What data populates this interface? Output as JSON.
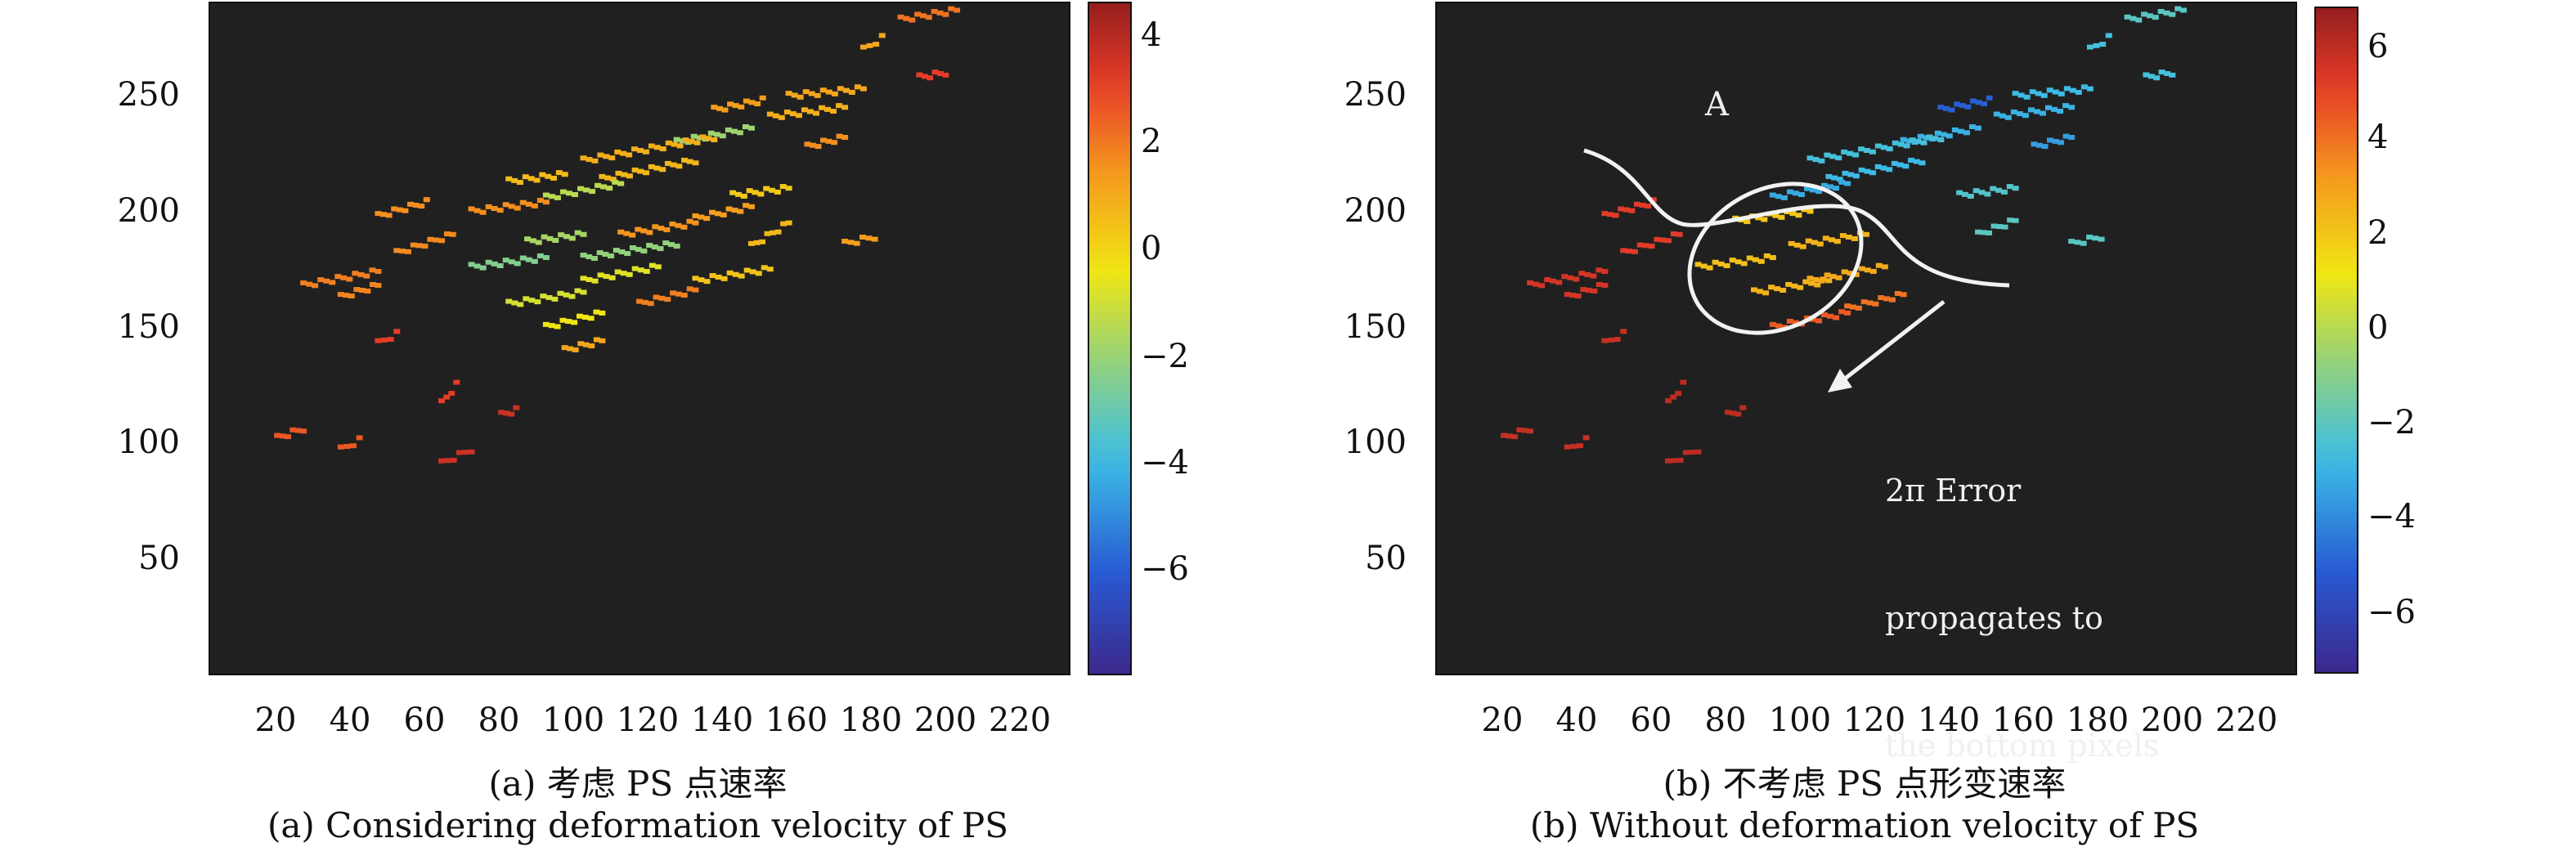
{
  "panels": [
    {
      "id": "a",
      "caption_cn": "(a) 考虑 PS 点速率",
      "caption_en": "(a) Considering deformation velocity of PS",
      "colorbar_ticks": [
        "4",
        "2",
        "0",
        "−2",
        "−4",
        "−6"
      ],
      "label_A": "",
      "annotation": []
    },
    {
      "id": "b",
      "caption_cn": "(b) 不考虑 PS 点形变速率",
      "caption_en": "(b) Without deformation velocity of PS",
      "colorbar_ticks": [
        "6",
        "4",
        "2",
        "0",
        "−2",
        "−4",
        "−6"
      ],
      "label_A": "A",
      "annotation": [
        "2π Error",
        "propagates to",
        "the bottom pixels"
      ]
    }
  ],
  "chart_data": [
    {
      "type": "scatter",
      "title": "(a) 考虑 PS 点速率",
      "subtitle": "(a) Considering deformation velocity of PS",
      "xlim": [
        0,
        230
      ],
      "ylim": [
        0,
        290
      ],
      "x_ticks": [
        20,
        40,
        60,
        80,
        100,
        120,
        140,
        160,
        180,
        200,
        220
      ],
      "y_ticks": [
        50,
        100,
        150,
        200,
        250
      ],
      "colorbar": {
        "range": [
          -8,
          4.5
        ],
        "ticks": [
          4,
          2,
          0,
          -2,
          -4,
          -6
        ]
      },
      "background": "#202020",
      "segments": [
        {
          "x": [
            185,
            200
          ],
          "y": [
            283,
            287
          ],
          "v": 2.0
        },
        {
          "x": [
            190,
            197
          ],
          "y": [
            258,
            260
          ],
          "v": 3.0
        },
        {
          "x": [
            155,
            175
          ],
          "y": [
            250,
            253
          ],
          "v": 1.0
        },
        {
          "x": [
            150,
            170
          ],
          "y": [
            241,
            245
          ],
          "v": 0.8
        },
        {
          "x": [
            135,
            148
          ],
          "y": [
            244,
            248
          ],
          "v": 1.2
        },
        {
          "x": [
            125,
            145
          ],
          "y": [
            230,
            236
          ],
          "v": -2.0
        },
        {
          "x": [
            100,
            135
          ],
          "y": [
            222,
            232
          ],
          "v": 0.8
        },
        {
          "x": [
            105,
            130
          ],
          "y": [
            214,
            222
          ],
          "v": 0.6
        },
        {
          "x": [
            90,
            110
          ],
          "y": [
            206,
            212
          ],
          "v": -1.5
        },
        {
          "x": [
            80,
            95
          ],
          "y": [
            213,
            216
          ],
          "v": 0.5
        },
        {
          "x": [
            70,
            90
          ],
          "y": [
            200,
            204
          ],
          "v": 1.5
        },
        {
          "x": [
            45,
            58
          ],
          "y": [
            198,
            204
          ],
          "v": 1.5
        },
        {
          "x": [
            50,
            65
          ],
          "y": [
            182,
            190
          ],
          "v": 1.6
        },
        {
          "x": [
            25,
            45
          ],
          "y": [
            168,
            174
          ],
          "v": 1.8
        },
        {
          "x": [
            35,
            45
          ],
          "y": [
            163,
            168
          ],
          "v": 1.7
        },
        {
          "x": [
            70,
            90
          ],
          "y": [
            176,
            180
          ],
          "v": -2.5
        },
        {
          "x": [
            85,
            100
          ],
          "y": [
            187,
            190
          ],
          "v": -1.8
        },
        {
          "x": [
            100,
            125
          ],
          "y": [
            180,
            186
          ],
          "v": -2.2
        },
        {
          "x": [
            110,
            130
          ],
          "y": [
            190,
            195
          ],
          "v": 1.4
        },
        {
          "x": [
            130,
            145
          ],
          "y": [
            197,
            202
          ],
          "v": 1.2
        },
        {
          "x": [
            140,
            155
          ],
          "y": [
            207,
            210
          ],
          "v": 0.2
        },
        {
          "x": [
            145,
            155
          ],
          "y": [
            185,
            195
          ],
          "v": 0.6
        },
        {
          "x": [
            160,
            170
          ],
          "y": [
            228,
            232
          ],
          "v": 1.5
        },
        {
          "x": [
            80,
            100
          ],
          "y": [
            160,
            165
          ],
          "v": -1.0
        },
        {
          "x": [
            90,
            105
          ],
          "y": [
            150,
            156
          ],
          "v": -0.5
        },
        {
          "x": [
            100,
            120
          ],
          "y": [
            170,
            176
          ],
          "v": -0.8
        },
        {
          "x": [
            115,
            130
          ],
          "y": [
            160,
            166
          ],
          "v": 1.8
        },
        {
          "x": [
            130,
            150
          ],
          "y": [
            170,
            175
          ],
          "v": 0.3
        },
        {
          "x": [
            95,
            105
          ],
          "y": [
            140,
            144
          ],
          "v": 1.0
        },
        {
          "x": [
            45,
            50
          ],
          "y": [
            143,
            147
          ],
          "v": 3.0
        },
        {
          "x": [
            62,
            66
          ],
          "y": [
            117,
            125
          ],
          "v": 3.0
        },
        {
          "x": [
            18,
            25
          ],
          "y": [
            102,
            106
          ],
          "v": 2.5
        },
        {
          "x": [
            35,
            40
          ],
          "y": [
            97,
            101
          ],
          "v": 2.5
        },
        {
          "x": [
            62,
            70
          ],
          "y": [
            91,
            97
          ],
          "v": 3.5
        },
        {
          "x": [
            78,
            82
          ],
          "y": [
            112,
            114
          ],
          "v": 3.5
        },
        {
          "x": [
            170,
            178
          ],
          "y": [
            186,
            189
          ],
          "v": 1.2
        },
        {
          "x": [
            175,
            180
          ],
          "y": [
            270,
            275
          ],
          "v": 1.0
        }
      ]
    },
    {
      "type": "scatter",
      "title": "(b) 不考虑 PS 点形变速率",
      "subtitle": "(b) Without deformation velocity of PS",
      "xlim": [
        0,
        230
      ],
      "ylim": [
        0,
        290
      ],
      "x_ticks": [
        20,
        40,
        60,
        80,
        100,
        120,
        140,
        160,
        180,
        200,
        220
      ],
      "y_ticks": [
        50,
        100,
        150,
        200,
        250
      ],
      "colorbar": {
        "range": [
          -7.2,
          6.8
        ],
        "ticks": [
          6,
          4,
          2,
          0,
          -2,
          -4,
          -6
        ]
      },
      "background": "#202020",
      "annotation": "2π Error propagates to the bottom pixels",
      "label": "A",
      "segments": [
        {
          "x": [
            185,
            200
          ],
          "y": [
            283,
            287
          ],
          "v": -2.0
        },
        {
          "x": [
            190,
            197
          ],
          "y": [
            258,
            260
          ],
          "v": -2.5
        },
        {
          "x": [
            155,
            175
          ],
          "y": [
            250,
            253
          ],
          "v": -2.8
        },
        {
          "x": [
            150,
            170
          ],
          "y": [
            241,
            245
          ],
          "v": -3.0
        },
        {
          "x": [
            135,
            148
          ],
          "y": [
            244,
            248
          ],
          "v": -5.0
        },
        {
          "x": [
            125,
            145
          ],
          "y": [
            230,
            236
          ],
          "v": -3.0
        },
        {
          "x": [
            100,
            135
          ],
          "y": [
            222,
            232
          ],
          "v": -2.5
        },
        {
          "x": [
            105,
            130
          ],
          "y": [
            214,
            222
          ],
          "v": -2.8
        },
        {
          "x": [
            90,
            110
          ],
          "y": [
            206,
            212
          ],
          "v": -3.2
        },
        {
          "x": [
            140,
            155
          ],
          "y": [
            207,
            210
          ],
          "v": -2.2
        },
        {
          "x": [
            145,
            155
          ],
          "y": [
            190,
            196
          ],
          "v": -2.0
        },
        {
          "x": [
            160,
            170
          ],
          "y": [
            228,
            232
          ],
          "v": -3.5
        },
        {
          "x": [
            170,
            178
          ],
          "y": [
            186,
            189
          ],
          "v": -2.0
        },
        {
          "x": [
            80,
            100
          ],
          "y": [
            196,
            200
          ],
          "v": 2.0
        },
        {
          "x": [
            95,
            115
          ],
          "y": [
            185,
            190
          ],
          "v": 2.5
        },
        {
          "x": [
            70,
            90
          ],
          "y": [
            176,
            180
          ],
          "v": 2.2
        },
        {
          "x": [
            85,
            105
          ],
          "y": [
            165,
            170
          ],
          "v": 2.5
        },
        {
          "x": [
            100,
            120
          ],
          "y": [
            170,
            176
          ],
          "v": 2.8
        },
        {
          "x": [
            110,
            125
          ],
          "y": [
            158,
            164
          ],
          "v": 4.0
        },
        {
          "x": [
            90,
            110
          ],
          "y": [
            150,
            156
          ],
          "v": 4.5
        },
        {
          "x": [
            45,
            58
          ],
          "y": [
            198,
            204
          ],
          "v": 5.2
        },
        {
          "x": [
            50,
            65
          ],
          "y": [
            182,
            190
          ],
          "v": 5.2
        },
        {
          "x": [
            25,
            45
          ],
          "y": [
            168,
            174
          ],
          "v": 5.5
        },
        {
          "x": [
            35,
            45
          ],
          "y": [
            163,
            168
          ],
          "v": 5.5
        },
        {
          "x": [
            45,
            50
          ],
          "y": [
            143,
            147
          ],
          "v": 5.8
        },
        {
          "x": [
            62,
            66
          ],
          "y": [
            117,
            125
          ],
          "v": 6.0
        },
        {
          "x": [
            18,
            25
          ],
          "y": [
            102,
            106
          ],
          "v": 5.8
        },
        {
          "x": [
            35,
            40
          ],
          "y": [
            97,
            101
          ],
          "v": 5.8
        },
        {
          "x": [
            62,
            70
          ],
          "y": [
            91,
            97
          ],
          "v": 6.0
        },
        {
          "x": [
            78,
            82
          ],
          "y": [
            112,
            114
          ],
          "v": 6.0
        },
        {
          "x": [
            175,
            180
          ],
          "y": [
            270,
            275
          ],
          "v": -2.5
        }
      ]
    }
  ]
}
